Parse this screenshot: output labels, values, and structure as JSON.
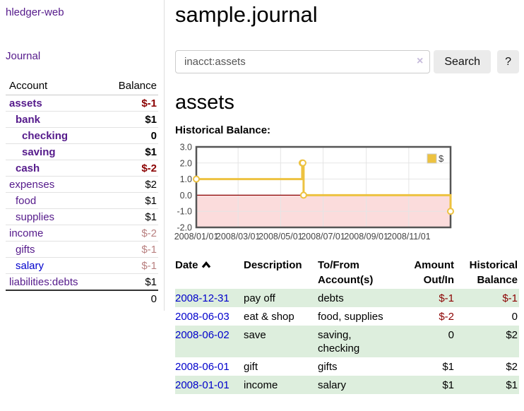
{
  "app": {
    "title": "hledger-web",
    "nav_journal": "Journal"
  },
  "sidebar": {
    "accounts_table": {
      "col_account": "Account",
      "col_balance": "Balance",
      "rows": [
        {
          "account": "assets",
          "balance": "$-1",
          "depth": 1,
          "bold": true,
          "value_class": "neg",
          "link": "purple"
        },
        {
          "account": "bank",
          "balance": "$1",
          "depth": 2,
          "bold": true,
          "value_class": "",
          "link": "purple"
        },
        {
          "account": "checking",
          "balance": "0",
          "depth": 3,
          "bold": true,
          "value_class": "",
          "link": "purple"
        },
        {
          "account": "saving",
          "balance": "$1",
          "depth": 3,
          "bold": true,
          "value_class": "",
          "link": "purple"
        },
        {
          "account": "cash",
          "balance": "$-2",
          "depth": 2,
          "bold": true,
          "value_class": "neg",
          "link": "purple"
        },
        {
          "account": "expenses",
          "balance": "$2",
          "depth": 1,
          "bold": false,
          "value_class": "",
          "link": "purple"
        },
        {
          "account": "food",
          "balance": "$1",
          "depth": 2,
          "bold": false,
          "value_class": "",
          "link": "purple"
        },
        {
          "account": "supplies",
          "balance": "$1",
          "depth": 2,
          "bold": false,
          "value_class": "",
          "link": "purple"
        },
        {
          "account": "income",
          "balance": "$-2",
          "depth": 1,
          "bold": false,
          "value_class": "muted",
          "link": "purple"
        },
        {
          "account": "gifts",
          "balance": "$-1",
          "depth": 2,
          "bold": false,
          "value_class": "muted",
          "link": "purple"
        },
        {
          "account": "salary",
          "balance": "$-1",
          "depth": 2,
          "bold": false,
          "value_class": "muted",
          "link": "blue"
        },
        {
          "account": "liabilities:debts",
          "balance": "$1",
          "depth": 1,
          "bold": false,
          "value_class": "",
          "link": "purple"
        }
      ],
      "total": "0"
    }
  },
  "header": {
    "title": "sample.journal"
  },
  "search": {
    "value": "inacct:assets",
    "clear_icon": "×",
    "button_label": "Search",
    "help_label": "?"
  },
  "account_page": {
    "heading": "assets",
    "chart_title": "Historical Balance:"
  },
  "chart_data": {
    "type": "line",
    "title": "Historical Balance",
    "series": [
      {
        "name": "$",
        "color": "#edc240",
        "step": true,
        "points": [
          [
            "2008-01-01",
            1
          ],
          [
            "2008-06-01",
            2
          ],
          [
            "2008-06-02",
            2
          ],
          [
            "2008-06-03",
            0
          ],
          [
            "2008-12-31",
            -1
          ]
        ]
      }
    ],
    "xrange": [
      "2008-01-01",
      "2008-12-31"
    ],
    "ylim": [
      -2,
      3
    ],
    "yticks": [
      3.0,
      2.0,
      1.0,
      0.0,
      -1.0,
      -2.0
    ],
    "xtick_labels": [
      "2008/01/01",
      "2008/03/01",
      "2008/05/01",
      "2008/07/01",
      "2008/09/01",
      "2008/11/01"
    ],
    "grid": true,
    "legend_position": "top-right",
    "negative_region_fill": "#fbdcdc",
    "zero_line_color": "#8b0000",
    "grid_color": "#e5e5e5",
    "border_color": "#555555",
    "tick_label_color": "#444444"
  },
  "register": {
    "columns": {
      "date": "Date",
      "description": "Description",
      "accounts_line1": "To/From",
      "accounts_line2": "Account(s)",
      "amount_line1": "Amount",
      "amount_line2": "Out/In",
      "balance_line1": "Historical",
      "balance_line2": "Balance"
    },
    "rows": [
      {
        "date": "2008-12-31",
        "description": "pay off",
        "accounts": "debts",
        "amount": "$-1",
        "amount_class": "neg",
        "balance": "$-1",
        "balance_class": "neg",
        "shaded": true
      },
      {
        "date": "2008-06-03",
        "description": "eat & shop",
        "accounts": "food, supplies",
        "amount": "$-2",
        "amount_class": "neg",
        "balance": "0",
        "balance_class": "",
        "shaded": false
      },
      {
        "date": "2008-06-02",
        "description": "save",
        "accounts": "saving, checking",
        "amount": "0",
        "amount_class": "",
        "balance": "$2",
        "balance_class": "",
        "shaded": true
      },
      {
        "date": "2008-06-01",
        "description": "gift",
        "accounts": "gifts",
        "amount": "$1",
        "amount_class": "",
        "balance": "$2",
        "balance_class": "",
        "shaded": false
      },
      {
        "date": "2008-01-01",
        "description": "income",
        "accounts": "salary",
        "amount": "$1",
        "amount_class": "",
        "balance": "$1",
        "balance_class": "",
        "shaded": true
      }
    ]
  },
  "colors": {
    "link_purple": "#551a8b",
    "link_blue": "#0000cc",
    "negative": "#8b0000",
    "negative_muted": "#b98080",
    "row_green": "#ddeedd",
    "series_yellow": "#edc240",
    "button_bg": "#ebebeb"
  }
}
